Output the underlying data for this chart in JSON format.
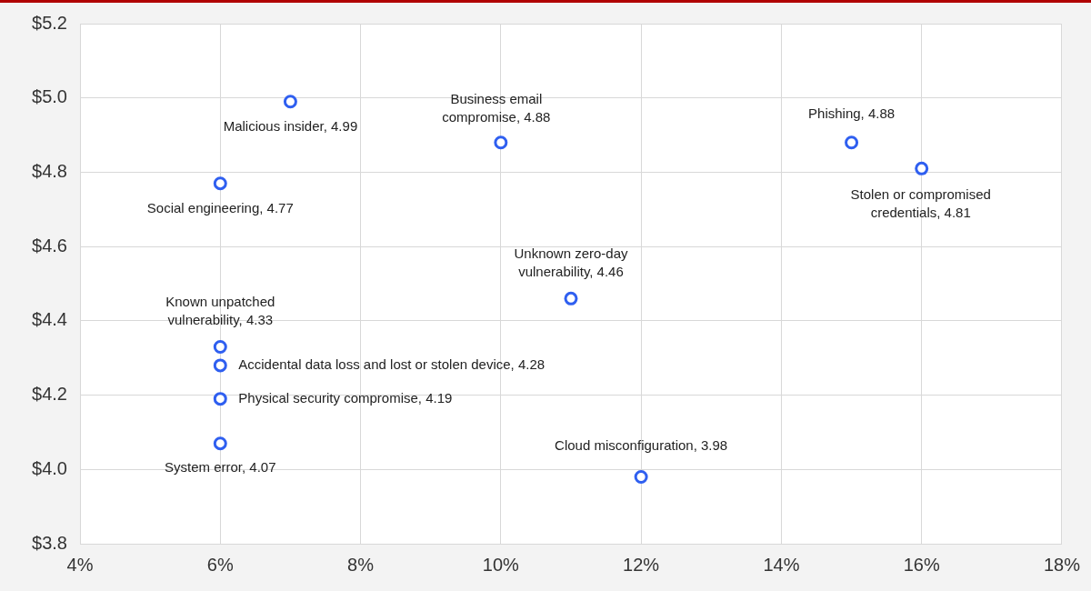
{
  "chart_data": {
    "type": "scatter",
    "marker": "circle",
    "grid": true,
    "x": [
      7,
      10,
      15,
      16,
      6,
      11,
      6,
      6,
      6,
      6,
      12
    ],
    "values": [
      4.99,
      4.88,
      4.88,
      4.81,
      4.77,
      4.46,
      4.33,
      4.28,
      4.19,
      4.07,
      3.98
    ],
    "color": "#2f5ff0",
    "xlim": [
      4,
      18
    ],
    "xticks": [
      {
        "value": 4,
        "label": "4%"
      },
      {
        "value": 6,
        "label": "6%"
      },
      {
        "value": 8,
        "label": "8%"
      },
      {
        "value": 10,
        "label": "10%"
      },
      {
        "value": 12,
        "label": "12%"
      },
      {
        "value": 14,
        "label": "14%"
      },
      {
        "value": 16,
        "label": "16%"
      },
      {
        "value": 18,
        "label": "18%"
      }
    ],
    "ylim": [
      3.8,
      5.2
    ],
    "yticks": [
      {
        "value": 3.8,
        "label": "$3.8"
      },
      {
        "value": 4.0,
        "label": "$4.0"
      },
      {
        "value": 4.2,
        "label": "$4.2"
      },
      {
        "value": 4.4,
        "label": "$4.4"
      },
      {
        "value": 4.6,
        "label": "$4.6"
      },
      {
        "value": 4.8,
        "label": "$4.8"
      },
      {
        "value": 5.0,
        "label": "$5.0"
      },
      {
        "value": 5.2,
        "label": "$5.2"
      }
    ],
    "annotations": [
      {
        "text": "Malicious insider, 4.99",
        "x": 7,
        "y": 4.99
      },
      {
        "text": "Business email compromise, 4.88",
        "x": 10,
        "y": 4.88
      },
      {
        "text": "Phishing, 4.88",
        "x": 15,
        "y": 4.88
      },
      {
        "text": "Stolen or compromised credentials, 4.81",
        "x": 16,
        "y": 4.81
      },
      {
        "text": "Social engineering, 4.77",
        "x": 6,
        "y": 4.77
      },
      {
        "text": "Unknown zero-day vulnerability, 4.46",
        "x": 11,
        "y": 4.46
      },
      {
        "text": "Known unpatched vulnerability, 4.33",
        "x": 6,
        "y": 4.33
      },
      {
        "text": "Accidental data loss and lost or stolen device, 4.28",
        "x": 6,
        "y": 4.28
      },
      {
        "text": "Physical security compromise, 4.19",
        "x": 6,
        "y": 4.19
      },
      {
        "text": "System error, 4.07",
        "x": 6,
        "y": 4.07
      },
      {
        "text": "Cloud misconfiguration, 3.98",
        "x": 12,
        "y": 3.98
      }
    ]
  }
}
